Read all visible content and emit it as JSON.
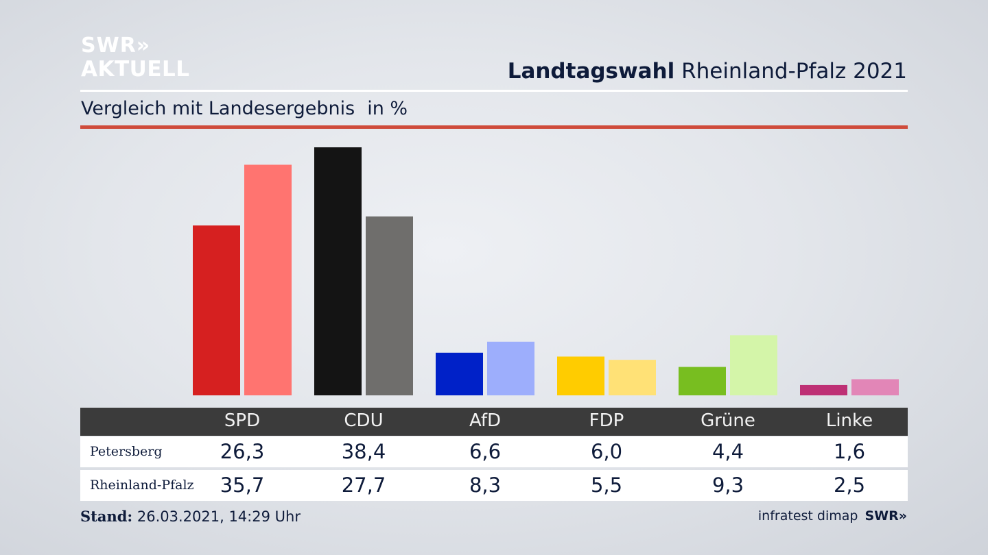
{
  "brand": {
    "logo_line1": "SWR»",
    "logo_line2": "AKTUELL"
  },
  "header": {
    "title_bold": "Landtagswahl",
    "title_rest": " Rheinland-Pfalz 2021",
    "subtitle": "Vergleich mit Landesergebnis",
    "unit": "in %"
  },
  "colors": {
    "accent_rule": "#cf4b3b",
    "table_header": "#3b3b3b"
  },
  "chart_data": {
    "type": "bar",
    "categories": [
      "SPD",
      "CDU",
      "AfD",
      "FDP",
      "Grüne",
      "Linke"
    ],
    "series": [
      {
        "name": "Petersberg",
        "values": [
          26.3,
          38.4,
          6.6,
          6.0,
          4.4,
          1.6
        ],
        "colors": [
          "#d62020",
          "#141414",
          "#0021c8",
          "#ffcc00",
          "#78be20",
          "#be3075"
        ]
      },
      {
        "name": "Rheinland-Pfalz",
        "values": [
          35.7,
          27.7,
          8.3,
          5.5,
          9.3,
          2.5
        ],
        "colors": [
          "#ff7470",
          "#6f6e6c",
          "#9daefc",
          "#ffe176",
          "#d4f5a9",
          "#e286b7"
        ]
      }
    ],
    "ylim": [
      0,
      40
    ],
    "grid": false,
    "legend": "table-below"
  },
  "table": {
    "parties": [
      "SPD",
      "CDU",
      "AfD",
      "FDP",
      "Grüne",
      "Linke"
    ],
    "rows": [
      {
        "label": "Petersberg",
        "values": [
          "26,3",
          "38,4",
          "6,6",
          "6,0",
          "4,4",
          "1,6"
        ]
      },
      {
        "label": "Rheinland-Pfalz",
        "values": [
          "35,7",
          "27,7",
          "8,3",
          "5,5",
          "9,3",
          "2,5"
        ]
      }
    ]
  },
  "footer": {
    "stand_label": "Stand:",
    "stand_value": " 26.03.2021, 14:29 Uhr",
    "source": "infratest dimap",
    "source_logo": "SWR»"
  }
}
